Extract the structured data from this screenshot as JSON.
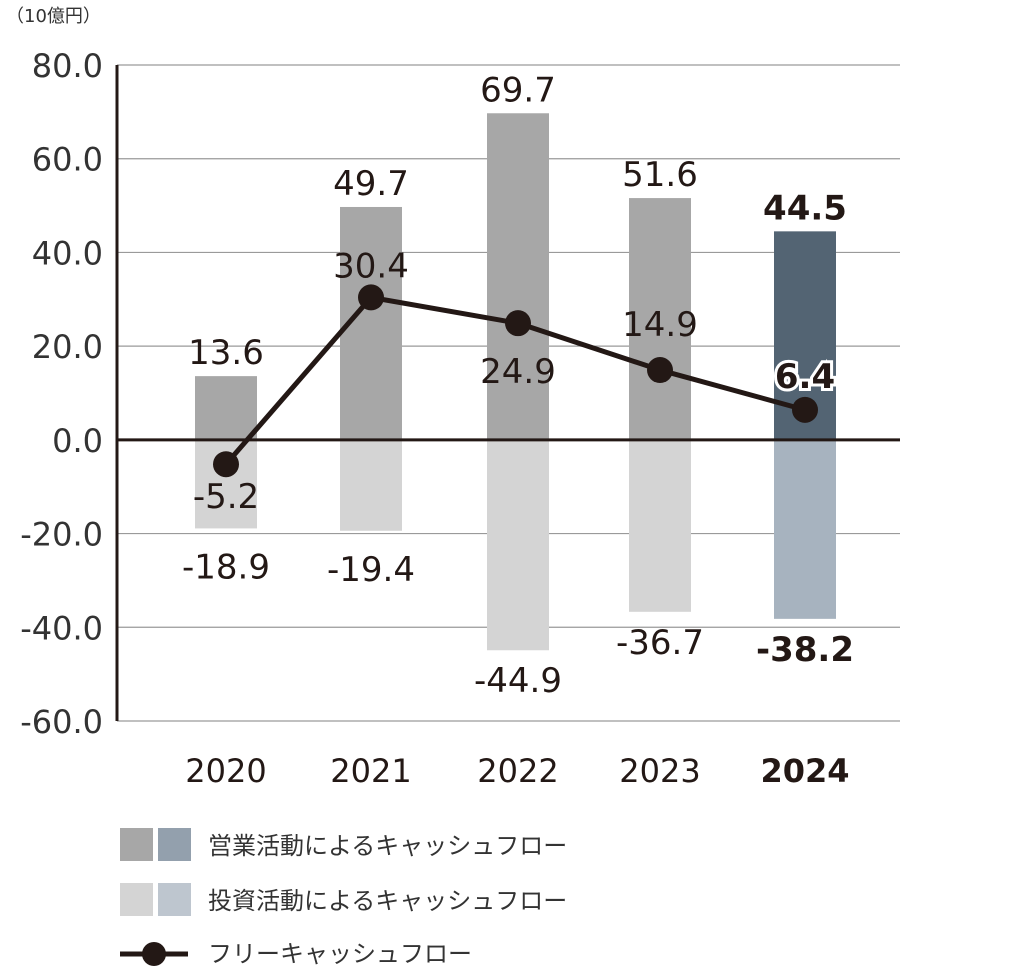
{
  "chart_data": {
    "type": "bar",
    "unit_label": "（10億円）",
    "categories": [
      "2020",
      "2021",
      "2022",
      "2023",
      "2024"
    ],
    "highlight_category": "2024",
    "ylim": [
      -60,
      80
    ],
    "yticks": [
      "80.0",
      "60.0",
      "40.0",
      "20.0",
      "0.0",
      "-20.0",
      "-40.0",
      "-60.0"
    ],
    "ytick_values": [
      80,
      60,
      40,
      20,
      0,
      -20,
      -40,
      -60
    ],
    "grid": true,
    "legend_position": "bottom",
    "series": [
      {
        "name": "営業活動によるキャッシュフロー",
        "type": "bar",
        "values": [
          13.6,
          49.7,
          69.7,
          51.6,
          44.5
        ],
        "labels": [
          "13.6",
          "49.7",
          "69.7",
          "51.6",
          "44.5"
        ],
        "color": "#a7a7a7",
        "highlight_color": "#536473"
      },
      {
        "name": "投資活動によるキャッシュフロー",
        "type": "bar",
        "values": [
          -18.9,
          -19.4,
          -44.9,
          -36.7,
          -38.2
        ],
        "labels": [
          "-18.9",
          "-19.4",
          "-44.9",
          "-36.7",
          "-38.2"
        ],
        "color": "#d4d4d4",
        "highlight_color": "#a7b3bf"
      },
      {
        "name": "フリーキャッシュフロー",
        "type": "line",
        "values": [
          -5.2,
          30.4,
          24.9,
          14.9,
          6.4
        ],
        "labels": [
          "-5.2",
          "30.4",
          "24.9",
          "14.9",
          "6.4"
        ],
        "color": "#231815"
      }
    ]
  }
}
